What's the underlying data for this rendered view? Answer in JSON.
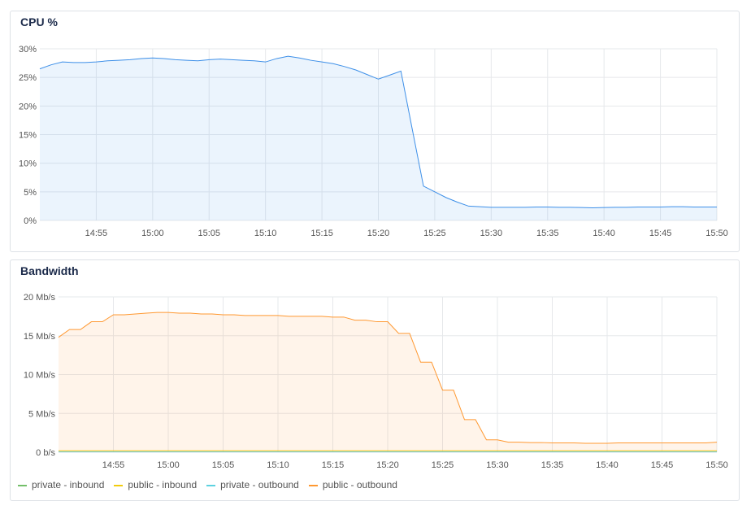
{
  "chart_data": [
    {
      "type": "area",
      "title": "CPU %",
      "x_start": "14:50",
      "x_step_minutes": 1,
      "xticks": [
        "14:55",
        "15:00",
        "15:05",
        "15:10",
        "15:15",
        "15:20",
        "15:25",
        "15:30",
        "15:35",
        "15:40",
        "15:45",
        "15:50"
      ],
      "yticks": [
        "0%",
        "5%",
        "10%",
        "15%",
        "20%",
        "25%",
        "30%"
      ],
      "ylim": [
        0,
        30
      ],
      "grid": true,
      "series": [
        {
          "color": "#3d8fe8",
          "values": [
            26.5,
            27.2,
            27.7,
            27.6,
            27.6,
            27.7,
            27.9,
            28.0,
            28.1,
            28.3,
            28.4,
            28.3,
            28.1,
            28.0,
            27.9,
            28.1,
            28.2,
            28.1,
            28.0,
            27.9,
            27.7,
            28.3,
            28.7,
            28.4,
            28.0,
            27.7,
            27.4,
            26.9,
            26.3,
            25.5,
            24.7,
            25.4,
            26.1,
            16.0,
            6.0,
            5.0,
            4.0,
            3.2,
            2.5,
            2.4,
            2.3,
            2.3,
            2.3,
            2.3,
            2.35,
            2.35,
            2.3,
            2.3,
            2.25,
            2.2,
            2.25,
            2.3,
            2.3,
            2.35,
            2.35,
            2.35,
            2.4,
            2.4,
            2.35,
            2.35,
            2.35
          ]
        }
      ]
    },
    {
      "type": "area",
      "title": "Bandwidth",
      "x_start": "14:50",
      "x_step_minutes": 1,
      "xticks": [
        "14:55",
        "15:00",
        "15:05",
        "15:10",
        "15:15",
        "15:20",
        "15:25",
        "15:30",
        "15:35",
        "15:40",
        "15:45",
        "15:50"
      ],
      "yticks": [
        "0 b/s",
        "5 Mb/s",
        "10 Mb/s",
        "15 Mb/s",
        "20 Mb/s"
      ],
      "ylim": [
        0,
        20
      ],
      "yunit": "Mb/s",
      "grid": true,
      "legend": "bottom-left",
      "series": [
        {
          "name": "private - inbound",
          "color": "#73bf69",
          "values": "const:0.05"
        },
        {
          "name": "public - inbound",
          "color": "#f2cc0c",
          "values": "const:0.2"
        },
        {
          "name": "private - outbound",
          "color": "#5dd2e0",
          "values": "const:0.05"
        },
        {
          "name": "public - outbound",
          "color": "#ff9830",
          "values": [
            14.8,
            15.8,
            15.8,
            16.8,
            16.8,
            17.7,
            17.7,
            17.8,
            17.9,
            18.0,
            18.0,
            17.9,
            17.9,
            17.8,
            17.8,
            17.7,
            17.7,
            17.6,
            17.6,
            17.6,
            17.6,
            17.5,
            17.5,
            17.5,
            17.5,
            17.4,
            17.4,
            17.0,
            17.0,
            16.8,
            16.8,
            15.3,
            15.3,
            11.6,
            11.6,
            8.0,
            8.0,
            4.2,
            4.2,
            1.6,
            1.6,
            1.3,
            1.3,
            1.25,
            1.25,
            1.2,
            1.2,
            1.2,
            1.15,
            1.15,
            1.15,
            1.2,
            1.2,
            1.2,
            1.2,
            1.2,
            1.2,
            1.2,
            1.2,
            1.2,
            1.3
          ]
        }
      ]
    }
  ]
}
